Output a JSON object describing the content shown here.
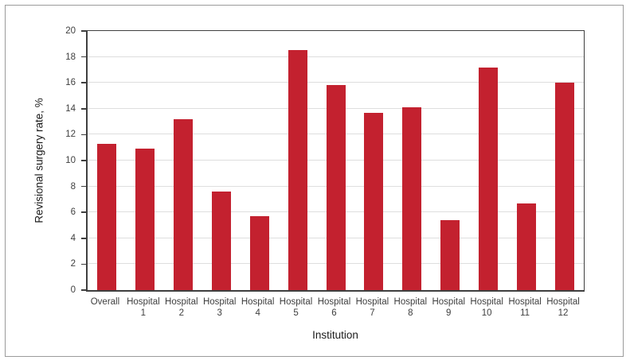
{
  "figure": {
    "background": "#ffffff",
    "border_color": "#9b9b9b"
  },
  "chart_data": {
    "type": "bar",
    "title": "",
    "categories": [
      "Overall",
      "Hospital 1",
      "Hospital 2",
      "Hospital 3",
      "Hospital 4",
      "Hospital 5",
      "Hospital 6",
      "Hospital 7",
      "Hospital 8",
      "Hospital 9",
      "Hospital 10",
      "Hospital 11",
      "Hospital 12"
    ],
    "values": [
      11.3,
      10.9,
      13.2,
      7.6,
      5.7,
      18.5,
      15.8,
      13.7,
      14.1,
      5.4,
      17.2,
      6.7,
      16.0
    ],
    "xlabel": "Institution",
    "ylabel": "Revisional surgery rate, %",
    "ylim": [
      0,
      20
    ],
    "ytick_step": 2,
    "yticks": [
      0,
      2,
      4,
      6,
      8,
      10,
      12,
      14,
      16,
      18,
      20
    ],
    "grid": true,
    "legend_position": "none",
    "bar_color": "#c3212f",
    "gridline_color": "#dedede",
    "axis_color": "#3f3f3f",
    "tick_label_color": "#3f3f3f",
    "axis_title_color": "#1c1c1c"
  }
}
